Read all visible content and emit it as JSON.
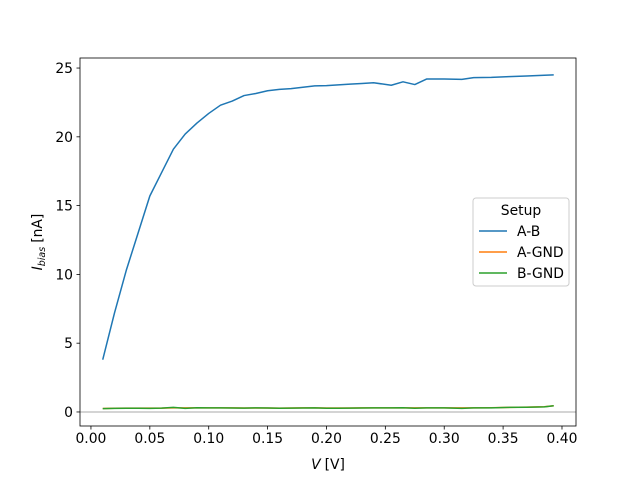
{
  "chart_data": {
    "type": "line",
    "xlabel": {
      "symbol": "V",
      "unit": "[V]"
    },
    "ylabel": {
      "symbol": "I",
      "subscript": "bias",
      "unit": "[nA]"
    },
    "x": [
      0.01,
      0.02,
      0.03,
      0.04,
      0.05,
      0.06,
      0.07,
      0.08,
      0.09,
      0.1,
      0.11,
      0.12,
      0.13,
      0.14,
      0.15,
      0.16,
      0.17,
      0.18,
      0.19,
      0.2,
      0.21,
      0.22,
      0.23,
      0.24,
      0.255,
      0.265,
      0.275,
      0.285,
      0.3,
      0.315,
      0.325,
      0.34,
      0.355,
      0.37,
      0.385,
      0.393
    ],
    "series": [
      {
        "name": "A-B",
        "color": "#1f77b4",
        "values": [
          3.8,
          7.2,
          10.3,
          13.0,
          15.7,
          17.4,
          19.1,
          20.2,
          21.0,
          21.7,
          22.3,
          22.6,
          23.0,
          23.15,
          23.35,
          23.45,
          23.5,
          23.6,
          23.7,
          23.72,
          23.78,
          23.83,
          23.88,
          23.93,
          23.75,
          24.0,
          23.8,
          24.2,
          24.2,
          24.18,
          24.3,
          24.32,
          24.38,
          24.42,
          24.48,
          24.5
        ]
      },
      {
        "name": "A-GND",
        "color": "#ff7f0e",
        "values": [
          0.25,
          0.27,
          0.28,
          0.28,
          0.28,
          0.28,
          0.3,
          0.3,
          0.3,
          0.3,
          0.3,
          0.3,
          0.29,
          0.29,
          0.29,
          0.28,
          0.29,
          0.3,
          0.3,
          0.29,
          0.29,
          0.29,
          0.3,
          0.3,
          0.3,
          0.3,
          0.3,
          0.3,
          0.3,
          0.3,
          0.3,
          0.31,
          0.33,
          0.35,
          0.38,
          0.45
        ]
      },
      {
        "name": "B-GND",
        "color": "#2ca02c",
        "values": [
          0.24,
          0.26,
          0.27,
          0.27,
          0.26,
          0.28,
          0.33,
          0.26,
          0.31,
          0.3,
          0.3,
          0.29,
          0.28,
          0.3,
          0.29,
          0.27,
          0.28,
          0.29,
          0.3,
          0.27,
          0.27,
          0.28,
          0.29,
          0.3,
          0.3,
          0.31,
          0.27,
          0.3,
          0.3,
          0.26,
          0.3,
          0.3,
          0.33,
          0.34,
          0.37,
          0.45
        ]
      }
    ],
    "legend_title": "Setup",
    "legend": "center right",
    "zero_line": true,
    "xlim": [
      -0.0093,
      0.4119
    ],
    "ylim": [
      -1.02,
      25.73
    ],
    "xticks": [
      {
        "value": 0,
        "label": "0.00"
      },
      0.05,
      {
        "value": 0.1,
        "label": "0.10"
      },
      0.15,
      {
        "value": 0.2,
        "label": "0.20"
      },
      0.25,
      {
        "value": 0.3,
        "label": "0.30"
      },
      0.35,
      {
        "value": 0.4,
        "label": "0.40"
      }
    ],
    "yticks": [
      0,
      5,
      10,
      15,
      20,
      25
    ]
  }
}
